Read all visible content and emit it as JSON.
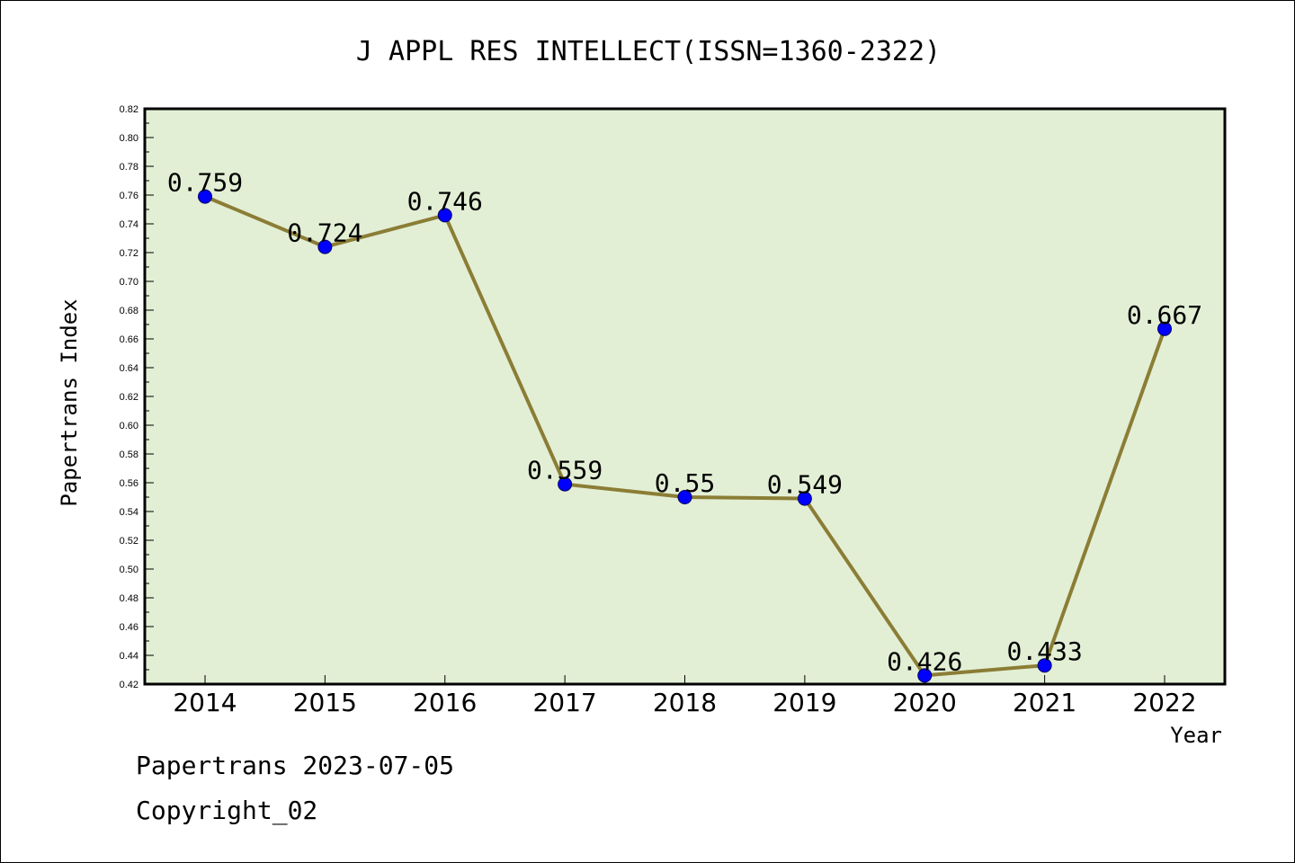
{
  "chart_data": {
    "type": "line",
    "title": "J APPL RES INTELLECT(ISSN=1360-2322)",
    "xlabel": "Year",
    "ylabel": "Papertrans Index",
    "categories": [
      "2014",
      "2015",
      "2016",
      "2017",
      "2018",
      "2019",
      "2020",
      "2021",
      "2022"
    ],
    "values": [
      0.759,
      0.724,
      0.746,
      0.559,
      0.55,
      0.549,
      0.426,
      0.433,
      0.667
    ],
    "data_labels": [
      "0.759",
      "0.724",
      "0.746",
      "0.559",
      "0.55",
      "0.549",
      "0.426",
      "0.433",
      "0.667"
    ],
    "ylim": [
      0.42,
      0.82
    ],
    "yticks": [
      "0.42",
      "0.44",
      "0.46",
      "0.48",
      "0.50",
      "0.52",
      "0.54",
      "0.56",
      "0.58",
      "0.60",
      "0.62",
      "0.64",
      "0.66",
      "0.68",
      "0.70",
      "0.72",
      "0.74",
      "0.76",
      "0.78",
      "0.80",
      "0.82"
    ],
    "grid": false,
    "colors": {
      "plot_background": "#e2efd5",
      "line": "#8b7d35",
      "marker": "#0000ff"
    }
  },
  "footer": {
    "line1": "Papertrans 2023-07-05",
    "line2": "Copyright_02"
  }
}
